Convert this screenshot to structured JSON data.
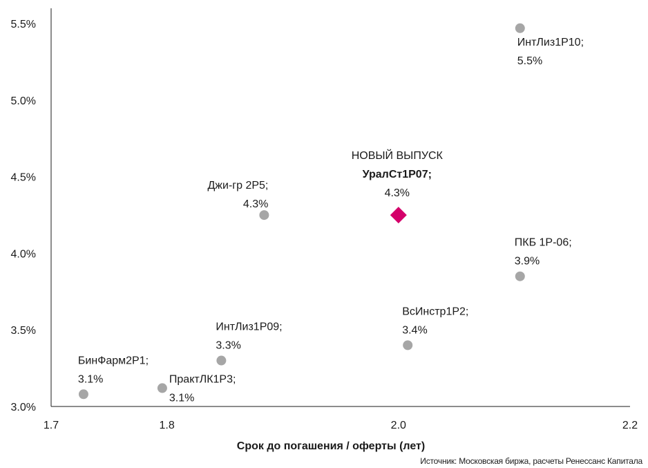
{
  "chart_data": {
    "type": "scatter",
    "title": "",
    "xlabel": "Срок до погашения / оферты (лет)",
    "ylabel": "",
    "xlim": [
      1.7,
      2.2
    ],
    "ylim": [
      3.0,
      5.6
    ],
    "x_ticks": [
      1.7,
      1.8,
      2.0,
      2.2
    ],
    "x_tick_labels": [
      "1.7",
      "1.8",
      "2.0",
      "2.2"
    ],
    "y_ticks": [
      3.0,
      3.5,
      4.0,
      4.5,
      5.0,
      5.5
    ],
    "y_tick_labels": [
      "3.0%",
      "3.5%",
      "4.0%",
      "4.5%",
      "5.0%",
      "5.5%"
    ],
    "grid": false,
    "points": [
      {
        "name": "БинФарм2Р1;",
        "value_label": "3.1%",
        "x": 1.728,
        "y": 3.08,
        "marker": "circle"
      },
      {
        "name": "ПрактЛК1Р3;",
        "value_label": "3.1%",
        "x": 1.796,
        "y": 3.12,
        "marker": "circle"
      },
      {
        "name": "ИнтЛиз1Р09;",
        "value_label": "3.3%",
        "x": 1.847,
        "y": 3.3,
        "marker": "circle"
      },
      {
        "name": "Джи-гр 2Р5;",
        "value_label": "4.3%",
        "x": 1.884,
        "y": 4.25,
        "marker": "circle"
      },
      {
        "name": "ВсИнстр1Р2;",
        "value_label": "3.4%",
        "x": 2.008,
        "y": 3.4,
        "marker": "circle"
      },
      {
        "name": "ПКБ 1Р-06;",
        "value_label": "3.9%",
        "x": 2.105,
        "y": 3.85,
        "marker": "circle"
      },
      {
        "name": "ИнтЛиз1Р10;",
        "value_label": "5.5%",
        "x": 2.105,
        "y": 5.47,
        "marker": "circle"
      },
      {
        "name": "УралСт1Р07;",
        "value_label": "4.3%",
        "x": 2.0,
        "y": 4.25,
        "marker": "diamond",
        "header": "НОВЫЙ ВЫПУСК",
        "highlight": true
      }
    ],
    "colors": {
      "point": "#a6a6a6",
      "highlight": "#d4006a",
      "axis": "#1a1a1a"
    }
  },
  "source_note": "Источник: Московская биржа, расчеты Ренессанс Капитала"
}
